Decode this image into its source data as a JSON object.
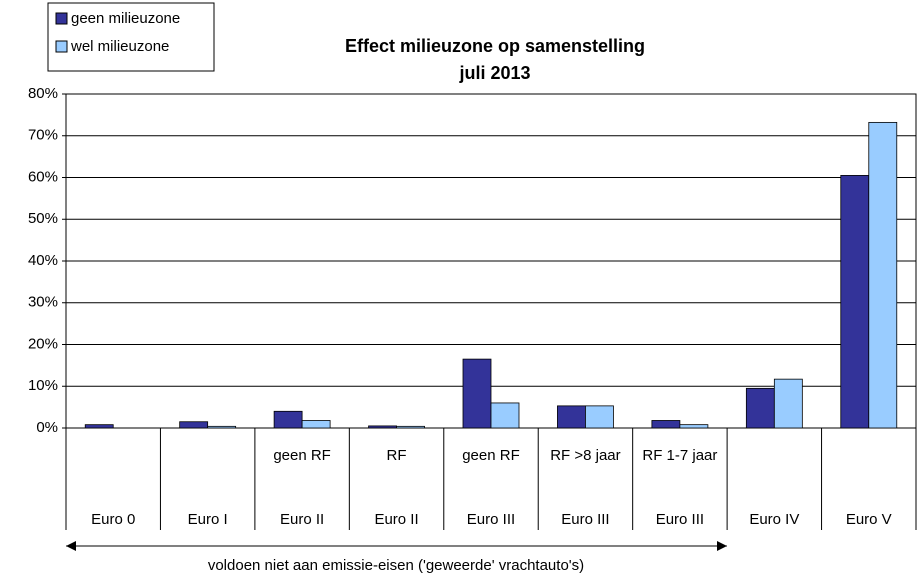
{
  "chart_data": {
    "type": "bar",
    "title": "Effect milieuzone op samenstelling",
    "subtitle": "juli 2013",
    "categories": [
      "Euro 0",
      "Euro I",
      "Euro II",
      "Euro II",
      "Euro III",
      "Euro III",
      "Euro III",
      "Euro IV",
      "Euro V"
    ],
    "subcategories": [
      null,
      null,
      "geen RF",
      "RF",
      "geen RF",
      "RF >8 jaar",
      "RF 1-7 jaar",
      null,
      null
    ],
    "series": [
      {
        "name": "geen milieuzone",
        "color": "#333399",
        "values": [
          0.8,
          1.5,
          4.0,
          0.5,
          16.5,
          5.3,
          1.8,
          9.5,
          60.5
        ]
      },
      {
        "name": "wel milieuzone",
        "color": "#99ccff",
        "values": [
          0,
          0.4,
          1.8,
          0.4,
          6.0,
          5.3,
          0.8,
          11.7,
          73.2
        ]
      }
    ],
    "ylim": [
      0,
      80
    ],
    "yticks": [
      {
        "value": 0,
        "label": "0%"
      },
      {
        "value": 10,
        "label": "10%"
      },
      {
        "value": 20,
        "label": "20%"
      },
      {
        "value": 30,
        "label": "30%"
      },
      {
        "value": 40,
        "label": "40%"
      },
      {
        "value": 50,
        "label": "50%"
      },
      {
        "value": 60,
        "label": "60%"
      },
      {
        "value": 70,
        "label": "70%"
      },
      {
        "value": 80,
        "label": "80%"
      }
    ],
    "grid": true,
    "legend": "top-left",
    "annotation": "voldoen niet aan emissie-eisen ('geweerde' vrachtauto's)"
  }
}
